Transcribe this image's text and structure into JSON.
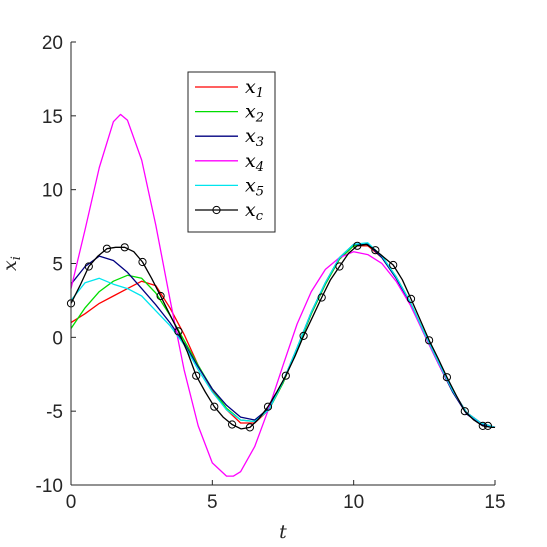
{
  "chart_data": {
    "type": "line",
    "title": "",
    "xlabel": "t",
    "ylabel": {
      "base": "x",
      "sub": "i"
    },
    "xlim": [
      0,
      15
    ],
    "ylim": [
      -10,
      20
    ],
    "xticks": [
      0,
      5,
      10,
      15
    ],
    "yticks": [
      -10,
      -5,
      0,
      5,
      10,
      15,
      20
    ],
    "xtick_labels": [
      "0",
      "5",
      "10",
      "15"
    ],
    "ytick_labels": [
      "-10",
      "-5",
      "0",
      "5",
      "10",
      "15",
      "20"
    ],
    "grid": false,
    "legend_position": "upper-left-inside",
    "series": [
      {
        "name": "x1",
        "label_base": "x",
        "label_sub": "1",
        "color": "#ff0000",
        "marker": "none",
        "x": [
          0,
          0.5,
          1,
          1.5,
          2,
          2.5,
          3,
          3.5,
          4,
          4.5,
          5,
          5.5,
          6,
          6.5,
          7,
          7.5,
          8,
          8.5,
          9,
          9.5,
          10,
          10.5,
          11,
          11.5,
          12,
          12.5,
          13,
          13.5,
          14,
          14.5,
          15
        ],
        "y": [
          1.0,
          1.6,
          2.3,
          2.8,
          3.3,
          3.8,
          3.5,
          2.0,
          0.2,
          -1.9,
          -3.6,
          -4.9,
          -5.8,
          -5.8,
          -4.9,
          -3.1,
          -0.8,
          1.6,
          3.6,
          5.3,
          6.2,
          6.2,
          5.4,
          4.1,
          2.4,
          0.3,
          -1.7,
          -3.6,
          -5.1,
          -5.8,
          -6.1
        ]
      },
      {
        "name": "x2",
        "label_base": "x",
        "label_sub": "2",
        "color": "#00dd00",
        "marker": "none",
        "x": [
          0,
          0.5,
          1,
          1.5,
          2,
          2.5,
          3,
          3.5,
          4,
          4.5,
          5,
          5.5,
          6,
          6.5,
          7,
          7.5,
          8,
          8.5,
          9,
          9.5,
          10,
          10.5,
          11,
          11.5,
          12,
          12.5,
          13,
          13.5,
          14,
          14.5,
          15
        ],
        "y": [
          0.6,
          2.0,
          3.1,
          3.8,
          4.2,
          4.0,
          3.0,
          1.5,
          -0.2,
          -1.9,
          -3.5,
          -4.8,
          -5.6,
          -5.7,
          -4.9,
          -3.1,
          -0.8,
          1.6,
          3.6,
          5.3,
          6.2,
          6.3,
          5.5,
          4.1,
          2.4,
          0.3,
          -1.7,
          -3.6,
          -5.1,
          -5.8,
          -6.1
        ]
      },
      {
        "name": "x3",
        "label_base": "x",
        "label_sub": "3",
        "color": "#000080",
        "marker": "none",
        "x": [
          0,
          0.5,
          1,
          1.5,
          2,
          2.5,
          3,
          3.5,
          4,
          4.5,
          5,
          5.5,
          6,
          6.5,
          7,
          7.5,
          8,
          8.5,
          9,
          9.5,
          10,
          10.5,
          11,
          11.5,
          12,
          12.5,
          13,
          13.5,
          14,
          14.5,
          15
        ],
        "y": [
          3.6,
          4.8,
          5.5,
          5.2,
          4.4,
          3.3,
          2.2,
          1.0,
          -0.4,
          -2.0,
          -3.5,
          -4.6,
          -5.4,
          -5.6,
          -4.8,
          -3.0,
          -0.7,
          1.7,
          3.7,
          5.4,
          6.3,
          6.3,
          5.4,
          4.0,
          2.3,
          0.2,
          -1.8,
          -3.7,
          -5.2,
          -5.9,
          -6.1
        ]
      },
      {
        "name": "x4",
        "label_base": "x",
        "label_sub": "4",
        "color": "#ff00ff",
        "marker": "none",
        "x": [
          0,
          0.5,
          1,
          1.5,
          1.75,
          2,
          2.5,
          3,
          3.5,
          4,
          4.5,
          5,
          5.5,
          5.75,
          6,
          6.5,
          7,
          7.5,
          8,
          8.5,
          9,
          9.5,
          10,
          10.5,
          11,
          11.5,
          12,
          12.5,
          13,
          13.5,
          14,
          14.5,
          15
        ],
        "y": [
          3.3,
          7.3,
          11.5,
          14.6,
          15.1,
          14.7,
          12.0,
          7.6,
          2.6,
          -2.2,
          -6.0,
          -8.5,
          -9.4,
          -9.4,
          -9.1,
          -7.4,
          -4.8,
          -1.9,
          0.9,
          3.1,
          4.6,
          5.4,
          5.8,
          5.6,
          5.0,
          3.8,
          2.2,
          0.2,
          -1.8,
          -3.6,
          -5.1,
          -5.8,
          -6.1
        ]
      },
      {
        "name": "x5",
        "label_base": "x",
        "label_sub": "5",
        "color": "#00e5ee",
        "marker": "none",
        "x": [
          0,
          0.5,
          1,
          1.5,
          2,
          2.5,
          3,
          3.5,
          4,
          4.5,
          5,
          5.5,
          6,
          6.5,
          7,
          7.5,
          8,
          8.5,
          9,
          9.5,
          10,
          10.5,
          11,
          11.5,
          12,
          12.5,
          13,
          13.5,
          14,
          14.5,
          15
        ],
        "y": [
          2.5,
          3.7,
          4.0,
          3.6,
          3.3,
          2.8,
          1.8,
          0.8,
          -0.5,
          -2.2,
          -3.7,
          -4.9,
          -5.6,
          -5.7,
          -4.9,
          -3.0,
          -0.7,
          1.7,
          3.7,
          5.4,
          6.3,
          6.4,
          5.5,
          4.1,
          2.4,
          0.3,
          -1.7,
          -3.6,
          -5.1,
          -5.8,
          -6.1
        ]
      },
      {
        "name": "xc",
        "label_base": "x",
        "label_sub": "c",
        "color": "#000000",
        "marker": "circle",
        "x": [
          0,
          0.32,
          0.63,
          0.95,
          1.27,
          1.58,
          1.9,
          2.22,
          2.53,
          2.85,
          3.17,
          3.48,
          3.8,
          4.12,
          4.43,
          4.75,
          5.07,
          5.38,
          5.7,
          6.02,
          6.33,
          6.65,
          6.97,
          7.28,
          7.6,
          7.92,
          8.23,
          8.55,
          8.87,
          9.18,
          9.5,
          9.82,
          10.13,
          10.45,
          10.77,
          11.08,
          11.4,
          11.72,
          12.03,
          12.35,
          12.67,
          12.98,
          13.3,
          13.62,
          13.93,
          14.25,
          14.57,
          14.88,
          15
        ],
        "y": [
          2.3,
          3.5,
          4.8,
          5.5,
          6.0,
          6.1,
          6.1,
          5.8,
          5.1,
          4.0,
          2.8,
          1.6,
          0.4,
          -1.0,
          -2.6,
          -3.7,
          -4.7,
          -5.4,
          -5.9,
          -6.2,
          -6.1,
          -5.5,
          -4.7,
          -3.7,
          -2.6,
          -1.3,
          0.1,
          1.4,
          2.7,
          3.9,
          4.8,
          5.7,
          6.2,
          6.3,
          5.9,
          5.4,
          4.9,
          3.9,
          2.6,
          1.2,
          -0.2,
          -1.4,
          -2.7,
          -3.9,
          -5.0,
          -5.6,
          -6.0,
          -6.1,
          -6.1
        ]
      }
    ]
  }
}
